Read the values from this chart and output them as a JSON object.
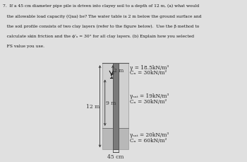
{
  "fig_bg": "#e0e0e0",
  "soil_layer1_color": "#d0d0d0",
  "soil_layer2_color": "#b8b8b8",
  "pile_color": "#7a7a7a",
  "pile_border": "#555555",
  "dim_line_color": "#333333",
  "text_color": "#111111",
  "label_text_color": "#222222",
  "water_symbol_color": "#000000",
  "layer1_top_line1": "γ = 18.5kN/m³",
  "layer1_top_line2": "Cₙ = 30kN/m²",
  "layer1_bot_line1": "γₛₐₜ = 19kN/m³",
  "layer1_bot_line2": "Cₙ = 30kN/m²",
  "layer2_line1": "γₛₐₜ = 20kN/m³",
  "layer2_line2": "Cₙ = 60kN/m²",
  "dim_12m": "12 m",
  "dim_9m": "9 m",
  "dim_2m": "2 m",
  "dim_45cm": "45 cm",
  "q_line1": "7.  If a 45 cm diameter pipe pile is driven into clayey soil to a depth of 12 m, (a) what would",
  "q_line2": "   the allowable load capacity (Qaa) be? The water table is 2 m below the ground surface and",
  "q_line3": "   the soil profile consists of two clay layers (refer to the figure below).  Use the β method to",
  "q_line4": "   calculate skin friction and the ϕ'ₐ = 30° for all clay layers. (b) Explain how you selected",
  "q_line5": "   FS value you use."
}
